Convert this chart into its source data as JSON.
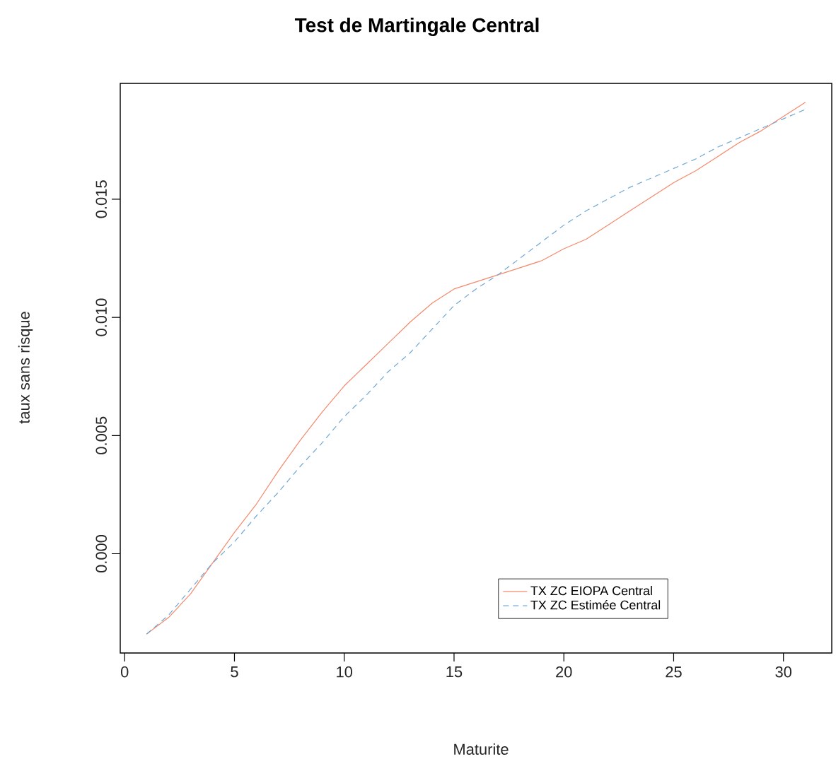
{
  "chart_data": {
    "type": "line",
    "title": "Test de Martingale Central",
    "xlabel": "Maturite",
    "ylabel": "taux sans risque",
    "x": [
      1,
      2,
      3,
      4,
      5,
      6,
      7,
      8,
      9,
      10,
      11,
      12,
      13,
      14,
      15,
      16,
      17,
      18,
      19,
      20,
      21,
      22,
      23,
      24,
      25,
      26,
      27,
      28,
      29,
      30,
      31
    ],
    "series": [
      {
        "name": "TX ZC EIOPA Central",
        "color": "#f4896b",
        "line_style": "solid",
        "values": [
          -0.0034,
          -0.0027,
          -0.0017,
          -0.0004,
          0.0009,
          0.0021,
          0.0035,
          0.0048,
          0.006,
          0.0071,
          0.008,
          0.0089,
          0.0098,
          0.0106,
          0.0112,
          0.0115,
          0.0118,
          0.0121,
          0.0124,
          0.0129,
          0.0133,
          0.0139,
          0.0145,
          0.0151,
          0.0157,
          0.0162,
          0.0168,
          0.0174,
          0.0179,
          0.0185,
          0.0191
        ]
      },
      {
        "name": "TX ZC Estimée Central",
        "color": "#6fa8d6",
        "line_style": "dashed",
        "values": [
          -0.0034,
          -0.0026,
          -0.0015,
          -0.0004,
          0.0005,
          0.0016,
          0.0026,
          0.0037,
          0.0047,
          0.0058,
          0.0067,
          0.0077,
          0.0085,
          0.0095,
          0.0105,
          0.0112,
          0.0118,
          0.0125,
          0.0132,
          0.0139,
          0.0145,
          0.015,
          0.0155,
          0.0159,
          0.0163,
          0.0167,
          0.0172,
          0.0176,
          0.018,
          0.0184,
          0.0188
        ]
      }
    ],
    "xlim": [
      -0.2,
      32.2
    ],
    "ylim": [
      -0.0042,
      0.0199
    ],
    "xticks": [
      0,
      5,
      10,
      15,
      20,
      25,
      30
    ],
    "yticks": [
      {
        "value": 0,
        "label": "0.000"
      },
      {
        "value": 0.005,
        "label": "0.005"
      },
      {
        "value": 0.01,
        "label": "0.010"
      },
      {
        "value": 0.015,
        "label": "0.015"
      }
    ],
    "legend": "bottom right",
    "grid": false,
    "marker": "none"
  }
}
